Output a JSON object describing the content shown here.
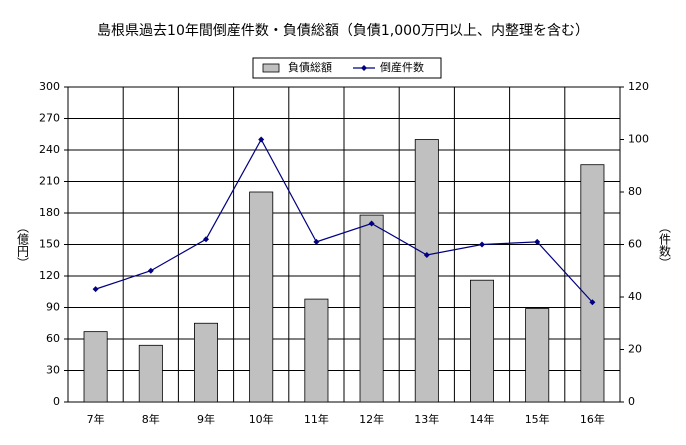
{
  "chart_data": {
    "type": "bar",
    "title": "島根県過去10年間倒産件数・負債総額（負債1,000万円以上、内整理を含む）",
    "y_label": "（億円）",
    "y2_label": "（件数）",
    "categories": [
      "7年",
      "8年",
      "9年",
      "10年",
      "11年",
      "12年",
      "13年",
      "14年",
      "15年",
      "16年"
    ],
    "series": [
      {
        "name": "負債総額",
        "type": "bar",
        "color": "#c0c0c0",
        "axis": "y",
        "values": [
          67,
          54,
          75,
          200,
          98,
          178,
          250,
          116,
          89,
          226
        ]
      },
      {
        "name": "倒産件数",
        "type": "line",
        "color": "#000080",
        "axis": "y2",
        "values": [
          43,
          50,
          62,
          100,
          61,
          68,
          56,
          60,
          61,
          38
        ]
      }
    ],
    "ylim": [
      0,
      300
    ],
    "yticks": [
      0,
      30,
      60,
      90,
      120,
      150,
      180,
      210,
      240,
      270,
      300
    ],
    "y2lim": [
      0,
      120
    ],
    "y2ticks": [
      0,
      20,
      40,
      60,
      80,
      100,
      120
    ],
    "grid": true,
    "legend": "top"
  }
}
